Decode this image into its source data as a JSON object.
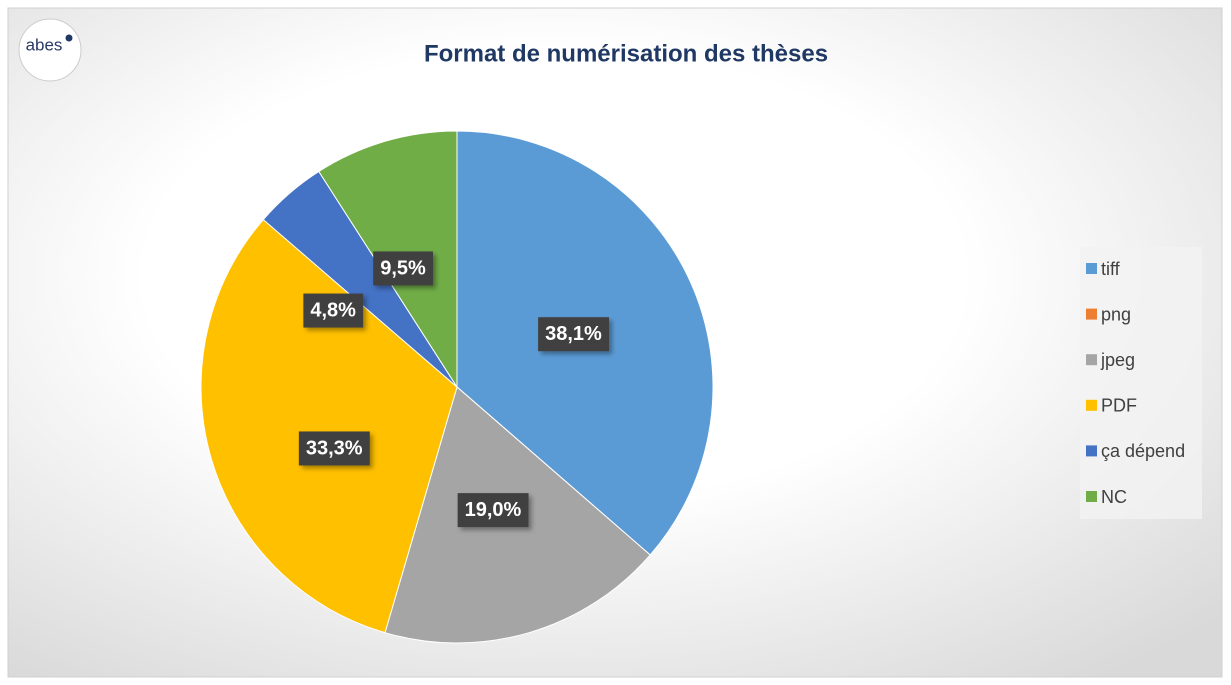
{
  "logo": "abes",
  "chart_data": {
    "type": "pie",
    "title": "Format de numérisation des thèses",
    "categories": [
      "tiff",
      "png",
      "jpeg",
      "PDF",
      "ça dépend",
      "NC"
    ],
    "values": [
      38.1,
      0,
      19.0,
      33.3,
      4.8,
      9.5
    ],
    "value_labels": [
      "38,1%",
      null,
      "19,0%",
      "33,3%",
      "4,8%",
      "9,5%"
    ],
    "colors": [
      "#5b9bd5",
      "#ed7d31",
      "#a5a5a5",
      "#ffc000",
      "#4472c4",
      "#70ad47"
    ],
    "legend": "right"
  }
}
